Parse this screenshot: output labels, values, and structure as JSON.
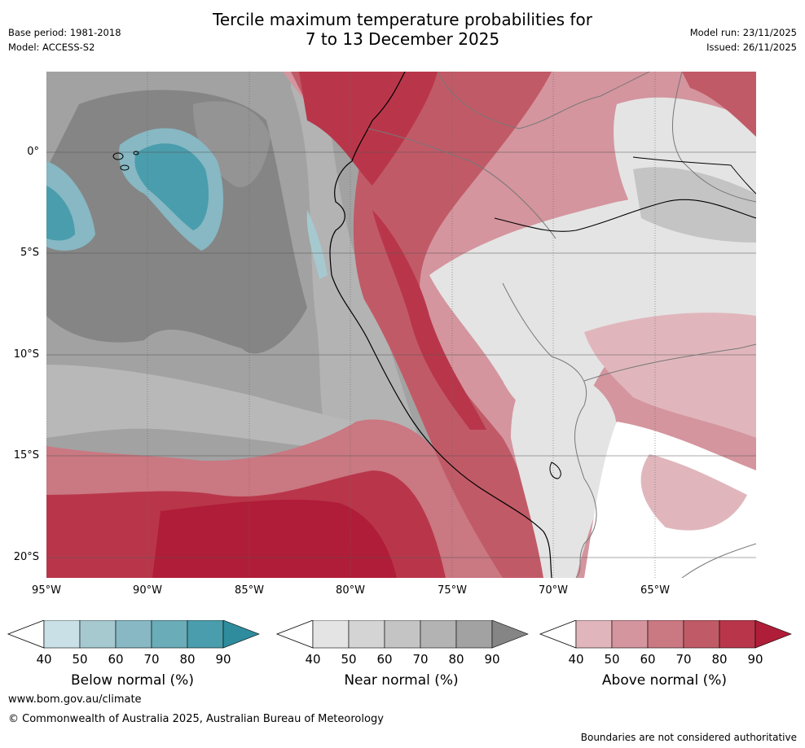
{
  "header": {
    "title_line1": "Tercile maximum temperature probabilities for",
    "title_line2": "7 to 13 December 2025",
    "base_period": "Base period: 1981-2018",
    "model": "Model: ACCESS-S2",
    "model_run": "Model run: 23/11/2025",
    "issued": "Issued: 26/11/2025"
  },
  "map": {
    "lat_labels": [
      "0°",
      "5°S",
      "10°S",
      "15°S",
      "20°S"
    ],
    "lon_labels": [
      "95°W",
      "90°W",
      "85°W",
      "80°W",
      "75°W",
      "70°W",
      "65°W"
    ]
  },
  "colorbars": [
    {
      "title": "Below normal (%)",
      "ticks": [
        "40",
        "50",
        "60",
        "70",
        "80",
        "90"
      ],
      "colors": [
        "#c9e1e6",
        "#a5c9cf",
        "#87b8c3",
        "#6aacb8",
        "#4a9dac",
        "#2e8c9d"
      ]
    },
    {
      "title": "Near normal (%)",
      "ticks": [
        "40",
        "50",
        "60",
        "70",
        "80",
        "90"
      ],
      "colors": [
        "#e4e4e4",
        "#d4d4d4",
        "#c4c4c4",
        "#b3b3b3",
        "#a2a2a2",
        "#858585"
      ]
    },
    {
      "title": "Above normal (%)",
      "ticks": [
        "40",
        "50",
        "60",
        "70",
        "80",
        "90"
      ],
      "colors": [
        "#e0b6bc",
        "#d4959e",
        "#ca7882",
        "#c15a67",
        "#b9364a",
        "#b01d38"
      ]
    }
  ],
  "footer": {
    "website": "www.bom.gov.au/climate",
    "copyright": "© Commonwealth of Australia 2025, Australian Bureau of Meteorology",
    "disclaimer": "Boundaries are not considered authoritative"
  }
}
